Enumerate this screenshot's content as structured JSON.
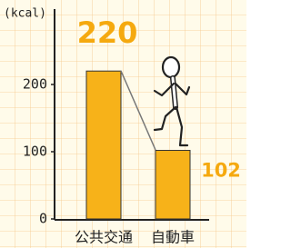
{
  "chart_data": {
    "type": "bar",
    "ylabel": "(kcal)",
    "categories": [
      "公共交通",
      "自動車"
    ],
    "values": [
      220,
      102
    ],
    "color": "#f7b219",
    "ylim": [
      0,
      300
    ],
    "yticks": [
      0,
      100,
      200
    ]
  }
}
